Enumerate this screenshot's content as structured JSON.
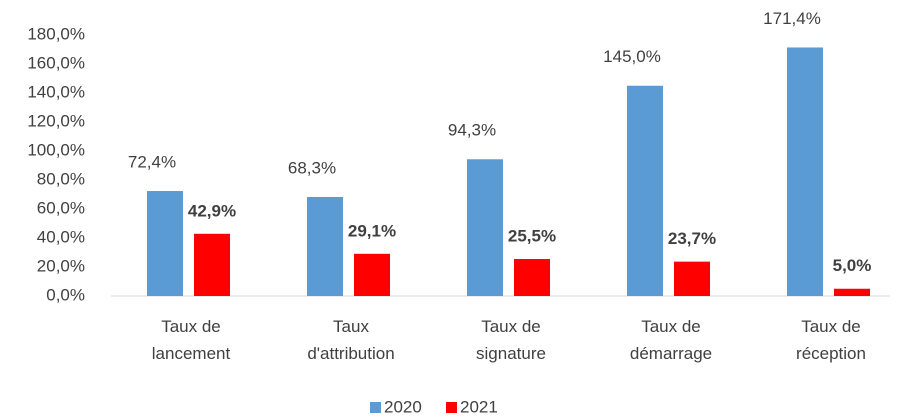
{
  "chart_data": {
    "type": "bar",
    "categories": [
      "Taux de\nlancement",
      "Taux\nd'attribution",
      "Taux de\nsignature",
      "Taux de\ndémarrage",
      "Taux de\nréception"
    ],
    "series": [
      {
        "name": "2020",
        "color": "#5b9bd5",
        "values": [
          72.4,
          68.3,
          94.3,
          145.0,
          171.4
        ],
        "value_labels": [
          "72,4%",
          "68,3%",
          "94,3%",
          "145,0%",
          "171,4%"
        ]
      },
      {
        "name": "2021",
        "color": "#ff0000",
        "values": [
          42.9,
          29.1,
          25.5,
          23.7,
          5.0
        ],
        "value_labels": [
          "42,9%",
          "29,1%",
          "25,5%",
          "23,7%",
          "5,0%"
        ]
      }
    ],
    "ylim": [
      0,
      180
    ],
    "yticks": [
      {
        "value": 0,
        "label": "0,0%"
      },
      {
        "value": 20,
        "label": "20,0%"
      },
      {
        "value": 40,
        "label": "40,0%"
      },
      {
        "value": 60,
        "label": "60,0%"
      },
      {
        "value": 80,
        "label": "80,0%"
      },
      {
        "value": 100,
        "label": "100,0%"
      },
      {
        "value": 120,
        "label": "120,0%"
      },
      {
        "value": 140,
        "label": "140,0%"
      },
      {
        "value": 160,
        "label": "160,0%"
      },
      {
        "value": 180,
        "label": "180,0%"
      }
    ],
    "grid": false,
    "legend": "bottom"
  }
}
